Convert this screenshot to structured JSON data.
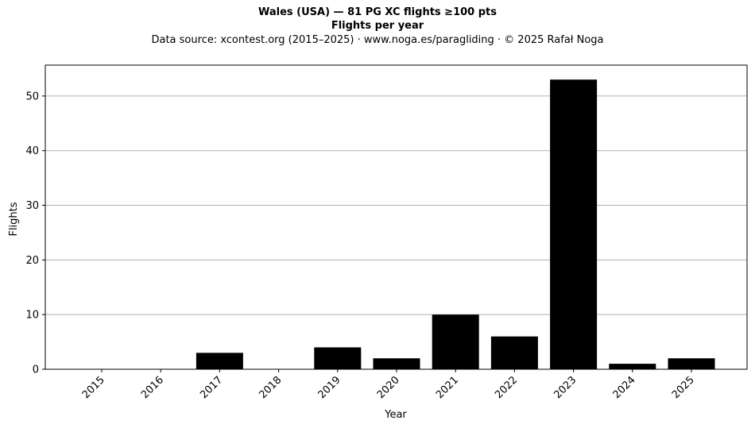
{
  "chart_data": {
    "type": "bar",
    "title": "Wales (USA)  —  81 PG XC flights ≥100 pts",
    "subtitle": "Flights per year",
    "source_line": "Data source: xcontest.org (2015–2025)  ·  www.noga.es/paragliding  ·  © 2025 Rafał Noga",
    "xlabel": "Year",
    "ylabel": "Flights",
    "categories": [
      "2015",
      "2016",
      "2017",
      "2018",
      "2019",
      "2020",
      "2021",
      "2022",
      "2023",
      "2024",
      "2025"
    ],
    "values": [
      0,
      0,
      3,
      0,
      4,
      2,
      10,
      6,
      53,
      1,
      2
    ],
    "ylim": [
      0,
      55.65
    ],
    "yticks": [
      0,
      10,
      20,
      30,
      40,
      50
    ],
    "grid": "horizontal",
    "bar_color": "#000000",
    "grid_color": "#b0b0b0"
  }
}
